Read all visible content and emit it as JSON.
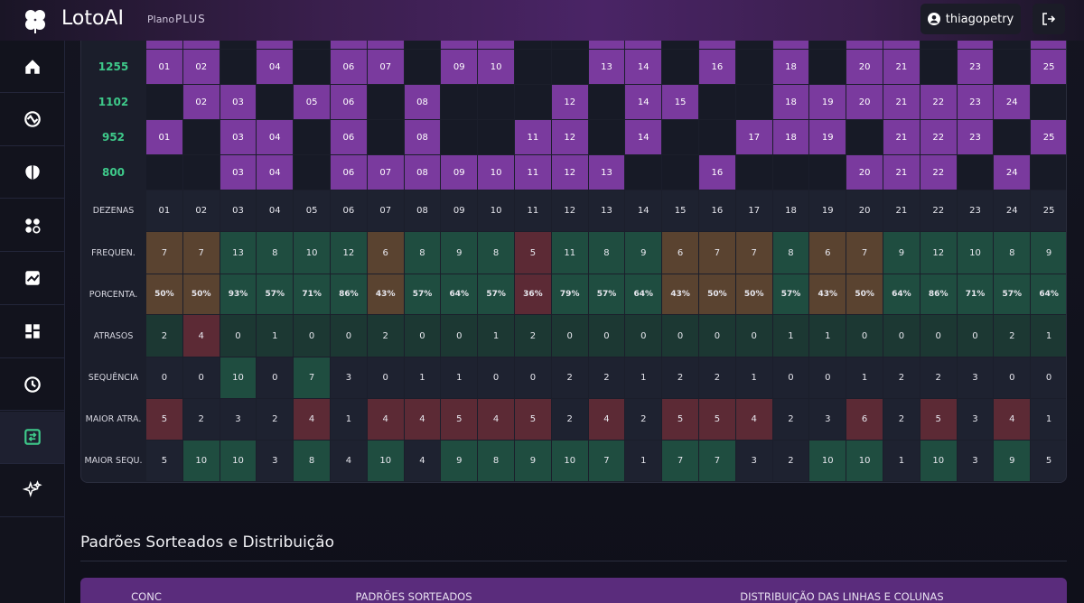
{
  "header": {
    "logo": "LotoAI",
    "plan_label": "Plano",
    "plan": "PLUS",
    "user": "thiagopetry"
  },
  "draws": [
    {
      "contest": "1255",
      "numbers": [
        "01",
        "02",
        "04",
        "06",
        "07",
        "09",
        "10",
        "13",
        "14",
        "16",
        "18",
        "20",
        "21",
        "23",
        "25"
      ]
    },
    {
      "contest": "1102",
      "numbers": [
        "02",
        "03",
        "05",
        "06",
        "08",
        "12",
        "14",
        "15",
        "18",
        "19",
        "20",
        "21",
        "22",
        "23",
        "24"
      ]
    },
    {
      "contest": "952",
      "numbers": [
        "01",
        "03",
        "04",
        "06",
        "08",
        "11",
        "12",
        "14",
        "17",
        "18",
        "19",
        "21",
        "22",
        "23",
        "25"
      ]
    },
    {
      "contest": "800",
      "numbers": [
        "03",
        "04",
        "06",
        "07",
        "08",
        "09",
        "10",
        "11",
        "12",
        "13",
        "16",
        "20",
        "21",
        "22",
        "24"
      ]
    }
  ],
  "stats": [
    {
      "label": "DEZENAS",
      "cells": [
        "01",
        "02",
        "03",
        "04",
        "05",
        "06",
        "07",
        "08",
        "09",
        "10",
        "11",
        "12",
        "13",
        "14",
        "15",
        "16",
        "17",
        "18",
        "19",
        "20",
        "21",
        "22",
        "23",
        "24",
        "25"
      ]
    },
    {
      "label": "FREQUEN.",
      "cells": [
        7,
        7,
        13,
        8,
        10,
        12,
        6,
        8,
        9,
        8,
        5,
        11,
        8,
        9,
        6,
        7,
        7,
        8,
        6,
        7,
        9,
        12,
        10,
        8,
        9
      ]
    },
    {
      "label": "PORCENTA.",
      "cells": [
        "50%",
        "50%",
        "93%",
        "57%",
        "71%",
        "86%",
        "43%",
        "57%",
        "64%",
        "57%",
        "36%",
        "79%",
        "57%",
        "64%",
        "43%",
        "50%",
        "50%",
        "57%",
        "43%",
        "50%",
        "64%",
        "86%",
        "71%",
        "57%",
        "64%"
      ]
    },
    {
      "label": "ATRASOS",
      "cells": [
        2,
        4,
        0,
        1,
        0,
        0,
        2,
        0,
        0,
        1,
        2,
        0,
        0,
        0,
        0,
        0,
        0,
        1,
        1,
        0,
        0,
        0,
        0,
        2,
        1
      ]
    },
    {
      "label": "SEQUÊNCIA",
      "cells": [
        0,
        0,
        10,
        0,
        7,
        3,
        0,
        1,
        1,
        0,
        0,
        2,
        2,
        1,
        2,
        2,
        1,
        0,
        0,
        1,
        2,
        2,
        3,
        0,
        0
      ]
    },
    {
      "label": "MAIOR ATRA.",
      "cells": [
        5,
        2,
        3,
        2,
        4,
        1,
        4,
        4,
        5,
        4,
        5,
        2,
        4,
        2,
        5,
        5,
        4,
        2,
        3,
        6,
        2,
        5,
        3,
        4,
        1
      ]
    },
    {
      "label": "MAIOR SEQU.",
      "cells": [
        5,
        10,
        10,
        3,
        8,
        4,
        10,
        4,
        9,
        8,
        9,
        10,
        7,
        1,
        7,
        7,
        3,
        2,
        10,
        10,
        1,
        10,
        3,
        9,
        5
      ]
    }
  ],
  "section": {
    "title": "Padrões Sorteados e Distribuição",
    "columns": [
      "CONC",
      "PADRÕES SORTEADOS",
      "DISTRIBUIÇÃO DAS LINHAS E COLUNAS"
    ]
  }
}
